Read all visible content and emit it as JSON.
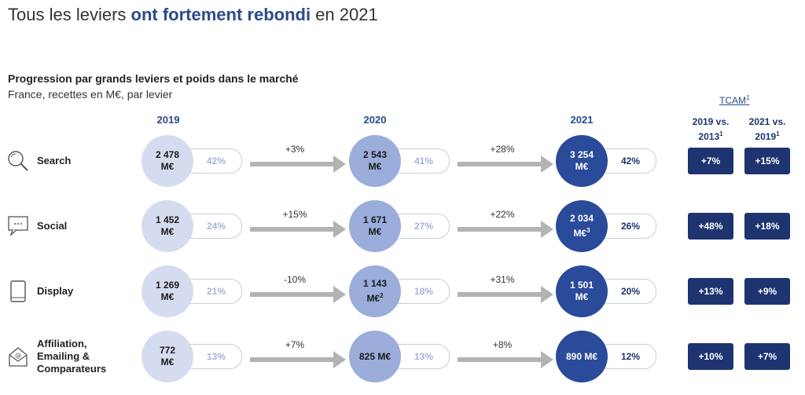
{
  "header": {
    "title_pre": "Tous les leviers ",
    "title_highlight": "ont fortement rebondi",
    "title_post": " en 2021",
    "subtitle": "Progression par grands leviers et poids dans le marché",
    "subtitle2": "France, recettes en M€, par levier"
  },
  "columns": {
    "y2019": "2019",
    "y2020": "2020",
    "y2021": "2021",
    "tcam": "TCAM",
    "tcam_sup": "1",
    "tcam1_line1": "2019 vs.",
    "tcam1_line2": "2013",
    "tcam2_line1": "2021 vs.",
    "tcam2_line2": "2019",
    "sup1": "1"
  },
  "rows": [
    {
      "label": "Search",
      "icon": "search-icon",
      "v2019": "2 478 M€",
      "p2019": "42%",
      "g1": "+3%",
      "v2020": "2 543 M€",
      "p2020": "41%",
      "g2": "+28%",
      "v2021": "3 254 M€",
      "p2021": "42%",
      "t1": "+7%",
      "t2": "+15%"
    },
    {
      "label": "Social",
      "icon": "chat-icon",
      "v2019": "1 452 M€",
      "p2019": "24%",
      "g1": "+15%",
      "v2020": "1 671 M€",
      "p2020": "27%",
      "g2": "+22%",
      "v2021": "2 034 M€",
      "v2021_sup": "3",
      "p2021": "26%",
      "t1": "+48%",
      "t2": "+18%"
    },
    {
      "label": "Display",
      "icon": "tablet-icon",
      "v2019": "1 269 M€",
      "p2019": "21%",
      "g1": "-10%",
      "v2020": "1 143 M€",
      "v2020_sup": "2",
      "p2020": "18%",
      "g2": "+31%",
      "v2021": "1 501 M€",
      "p2021": "20%",
      "t1": "+13%",
      "t2": "+9%"
    },
    {
      "label_lines": [
        "Affiliation,",
        "Emailing &",
        "Comparateurs"
      ],
      "icon": "email-icon",
      "v2019": "772 M€",
      "p2019": "13%",
      "g1": "+7%",
      "v2020": "825 M€",
      "p2020": "13%",
      "g2": "+8%",
      "v2021": "890 M€",
      "p2021": "12%",
      "t1": "+10%",
      "t2": "+7%"
    }
  ],
  "colors": {
    "c2019": "#d6dcef",
    "c2020": "#9aaddb",
    "c2021": "#2a4a9a",
    "badge": "#1e3470",
    "pct2019": "#a9b3d4",
    "pct2020": "#a9b3d4",
    "pct2021": "#1e3470"
  },
  "chart_data": {
    "type": "table",
    "title": "Progression par grands leviers et poids dans le marché",
    "subtitle": "France, recettes en M€, par levier",
    "categories": [
      "Search",
      "Social",
      "Display",
      "Affiliation, Emailing & Comparateurs"
    ],
    "series": [
      {
        "name": "2019",
        "values": [
          2478,
          1452,
          1269,
          772
        ],
        "share": [
          42,
          24,
          21,
          13
        ]
      },
      {
        "name": "2020",
        "values": [
          2543,
          1671,
          1143,
          825
        ],
        "share": [
          41,
          27,
          18,
          13
        ]
      },
      {
        "name": "2021",
        "values": [
          3254,
          2034,
          1501,
          890
        ],
        "share": [
          42,
          26,
          20,
          12
        ]
      }
    ],
    "growth_2019_2020": [
      "+3%",
      "+15%",
      "-10%",
      "+7%"
    ],
    "growth_2020_2021": [
      "+28%",
      "+22%",
      "+31%",
      "+8%"
    ],
    "tcam_2019_vs_2013": [
      "+7%",
      "+48%",
      "+13%",
      "+10%"
    ],
    "tcam_2021_vs_2019": [
      "+15%",
      "+18%",
      "+9%",
      "+7%"
    ]
  }
}
